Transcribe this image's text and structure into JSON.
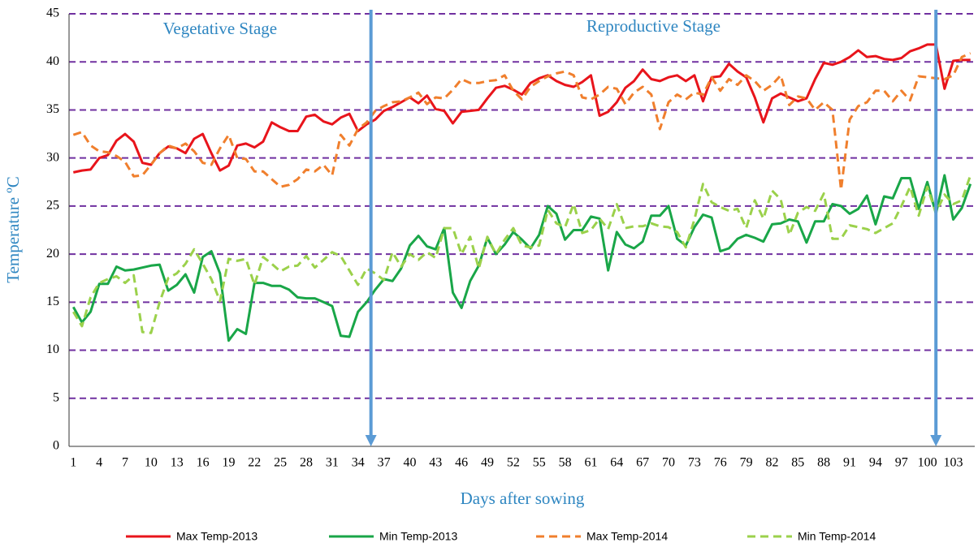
{
  "chart_data": {
    "type": "line",
    "y_label": "Temperature ºC",
    "x_label": "Days after sowing",
    "x": [
      1,
      2,
      3,
      4,
      5,
      6,
      7,
      8,
      9,
      10,
      11,
      12,
      13,
      14,
      15,
      16,
      17,
      18,
      19,
      20,
      21,
      22,
      23,
      24,
      25,
      26,
      27,
      28,
      29,
      30,
      31,
      32,
      33,
      34,
      35,
      36,
      37,
      38,
      39,
      40,
      41,
      42,
      43,
      44,
      45,
      46,
      47,
      48,
      49,
      50,
      51,
      52,
      53,
      54,
      55,
      56,
      57,
      58,
      59,
      60,
      61,
      62,
      63,
      64,
      65,
      66,
      67,
      68,
      69,
      70,
      71,
      72,
      73,
      74,
      75,
      76,
      77,
      78,
      79,
      80,
      81,
      82,
      83,
      84,
      85,
      86,
      87,
      88,
      89,
      90,
      91,
      92,
      93,
      94,
      95,
      96,
      97,
      98,
      99,
      100,
      101,
      102,
      103,
      104,
      105
    ],
    "xlim": [
      0.5,
      105.5
    ],
    "xticks": [
      1,
      4,
      7,
      10,
      13,
      16,
      19,
      22,
      25,
      28,
      31,
      34,
      37,
      40,
      43,
      46,
      49,
      52,
      55,
      58,
      61,
      64,
      67,
      70,
      73,
      76,
      79,
      82,
      85,
      88,
      91,
      94,
      97,
      100,
      103
    ],
    "ylim": [
      0,
      45
    ],
    "yticks": [
      0,
      5,
      10,
      15,
      20,
      25,
      30,
      35,
      40,
      45
    ],
    "grid": true,
    "grid_color": "#7030a0",
    "legend": "bottom",
    "series": [
      {
        "name": "Max Temp-2013",
        "color": "#e8141b",
        "style": "solid",
        "values": [
          28.5,
          28.7,
          28.8,
          30,
          30.3,
          31.8,
          32.5,
          31.7,
          29.5,
          29.3,
          30.5,
          31.2,
          31,
          30.5,
          32,
          32.5,
          30.5,
          28.7,
          29.2,
          31.3,
          31.5,
          31.1,
          31.7,
          33.7,
          33.2,
          32.8,
          32.8,
          34.3,
          34.5,
          33.8,
          33.5,
          34.2,
          34.6,
          32.8,
          33.5,
          34,
          34.9,
          35.3,
          35.8,
          36.3,
          35.7,
          36.5,
          35.1,
          34.9,
          33.6,
          34.8,
          34.9,
          35,
          36.2,
          37.3,
          37.5,
          37.1,
          36.6,
          37.8,
          38.3,
          38.6,
          38,
          37.6,
          37.4,
          37.9,
          38.6,
          34.4,
          34.8,
          35.8,
          37.3,
          38,
          39.2,
          38.2,
          38,
          38.4,
          38.6,
          38,
          38.6,
          35.9,
          38.4,
          38.5,
          39.8,
          39,
          38.4,
          36.3,
          33.7,
          36.2,
          36.7,
          36.3,
          35.9,
          36.2,
          38.2,
          39.9,
          39.7,
          40,
          40.5,
          41.2,
          40.5,
          40.6,
          40.3,
          40.2,
          40.4,
          41.1,
          41.4,
          41.8,
          41.8,
          37.2,
          40.1,
          40.2,
          40.2
        ]
      },
      {
        "name": "Min Temp-2013",
        "color": "#19a648",
        "style": "solid",
        "values": [
          14.5,
          12.9,
          14,
          16.9,
          16.9,
          18.7,
          18.3,
          18.4,
          18.6,
          18.8,
          18.9,
          16.2,
          16.8,
          17.9,
          16,
          19.7,
          20.3,
          18,
          11,
          12.2,
          11.7,
          17,
          17,
          16.7,
          16.7,
          16.3,
          15.5,
          15.4,
          15.4,
          15,
          14.6,
          11.5,
          11.4,
          14,
          15,
          16.3,
          17.4,
          17.2,
          18.5,
          20.9,
          21.9,
          20.8,
          20.5,
          22.7,
          16,
          14.4,
          17.2,
          18.8,
          21.7,
          20,
          21,
          22.3,
          21.5,
          20.6,
          22,
          25,
          24.2,
          21.5,
          22.5,
          22.5,
          23.9,
          23.7,
          18.3,
          22.3,
          21,
          20.6,
          21.3,
          24,
          24,
          25,
          21.6,
          20.9,
          22.8,
          24.1,
          23.8,
          20.3,
          20.6,
          21.6,
          22,
          21.7,
          21.3,
          23.1,
          23.2,
          23.6,
          23.4,
          21.2,
          23.4,
          23.4,
          25.2,
          25,
          24.2,
          24.7,
          26.1,
          23.1,
          26,
          25.8,
          27.9,
          27.9,
          24.7,
          27.5,
          24.2,
          28.2,
          23.6,
          24.8,
          27.3
        ]
      },
      {
        "name": "Max Temp-2014",
        "color": "#f07f2d",
        "style": "dashed",
        "values": [
          32.4,
          32.7,
          31.3,
          30.7,
          30.6,
          30.2,
          29.6,
          28.1,
          28.2,
          29.3,
          30.5,
          31.3,
          31,
          31.5,
          30.7,
          29.5,
          29.3,
          31,
          32.4,
          30,
          29.9,
          28.6,
          28.6,
          27.8,
          27,
          27.2,
          27.8,
          28.8,
          28.6,
          29.3,
          28.2,
          32.4,
          31.3,
          33,
          33.7,
          34.9,
          35.4,
          35.8,
          35.9,
          36.3,
          36.8,
          35.6,
          36.3,
          36.2,
          37.1,
          38.2,
          37.8,
          37.8,
          38,
          38.1,
          38.6,
          37,
          36.1,
          37.4,
          38,
          38.5,
          38.8,
          39,
          38.6,
          36.3,
          36.1,
          36.6,
          37.4,
          37.2,
          35.6,
          36.8,
          37.4,
          36.6,
          33,
          35.8,
          36.6,
          36.1,
          36.8,
          36.6,
          38.4,
          37,
          38.2,
          37.6,
          38.6,
          38,
          37,
          37.6,
          38.6,
          35.5,
          36.4,
          36.2,
          35,
          35.8,
          35,
          26.7,
          34,
          35.4,
          35.8,
          37,
          37,
          35.9,
          37,
          36,
          38.5,
          38.4,
          38.3,
          38.2,
          38.6,
          40.5,
          40.9
        ]
      },
      {
        "name": "Min Temp-2014",
        "color": "#9bd14b",
        "style": "dashed",
        "values": [
          14,
          12.5,
          15.5,
          17,
          17.4,
          17.7,
          17,
          17.8,
          11.9,
          11.8,
          15,
          17.5,
          18,
          19,
          20.5,
          19,
          17.4,
          15.1,
          19.5,
          19.3,
          19.5,
          16.8,
          19.7,
          19,
          18.2,
          18.7,
          18.8,
          19.8,
          18.6,
          19.4,
          20.2,
          19.8,
          18.3,
          16.8,
          18.5,
          18,
          17.3,
          20.2,
          18.7,
          20,
          19.4,
          20.2,
          19.6,
          22.7,
          22.7,
          20,
          21.8,
          18.5,
          21.8,
          20,
          21.5,
          22.7,
          20.9,
          20.7,
          20.9,
          24.6,
          23.2,
          22.8,
          25.2,
          22.2,
          22.5,
          23.7,
          22.6,
          25.2,
          22.7,
          22.9,
          22.9,
          23.2,
          22.9,
          22.8,
          22.3,
          20.7,
          23.6,
          27.3,
          25.4,
          24.9,
          24.5,
          24.7,
          22.7,
          25.6,
          23.7,
          26.6,
          25.7,
          22,
          24.3,
          24.9,
          24.5,
          26.3,
          21.6,
          21.6,
          23,
          22.8,
          22.6,
          22.2,
          22.7,
          23.2,
          25,
          27,
          24,
          27,
          24.3,
          26.2,
          25.2,
          25.6,
          28.2
        ]
      }
    ],
    "stage_labels": [
      "Vegetative Stage",
      "Reproductive Stage"
    ],
    "stage_boundaries": [
      35.5,
      101
    ],
    "annotation_color": "#2e86c1",
    "arrow_color": "#5b9bd5"
  }
}
